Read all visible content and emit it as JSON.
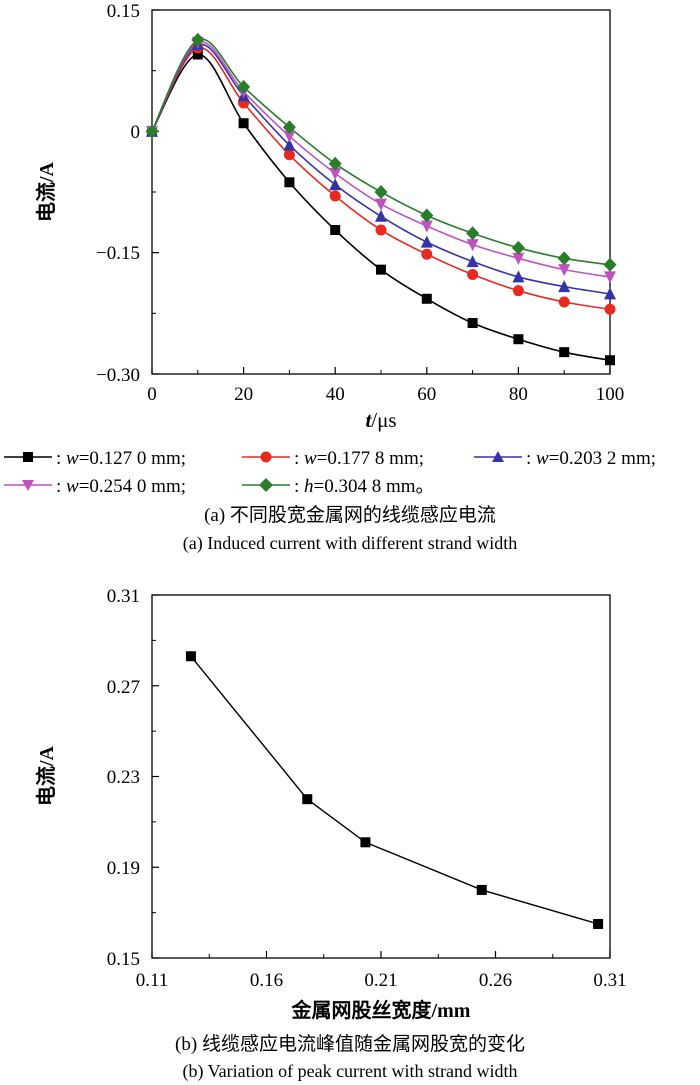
{
  "chart_data": [
    {
      "type": "line",
      "caption_cn": "(a) 不同股宽金属网的线缆感应电流",
      "caption_en": "(a) Induced current with different strand width",
      "xlabel_var": "t",
      "xlabel_unit": "/μs",
      "ylabel": "电流/A",
      "xlim": [
        0,
        100
      ],
      "ylim": [
        -0.3,
        0.15
      ],
      "xticks": [
        "0",
        "20",
        "40",
        "60",
        "80",
        "100"
      ],
      "yticks": [
        "0.15",
        "0",
        "−0.15",
        "−0.30"
      ],
      "x": [
        0,
        10,
        20,
        30,
        40,
        50,
        60,
        70,
        80,
        90,
        100
      ],
      "legend_placement": "bottom",
      "series": [
        {
          "var": "w",
          "value": "=0.127 0 mm;",
          "color": "#000000",
          "marker": "square",
          "values": [
            0,
            0.095,
            0.01,
            -0.063,
            -0.122,
            -0.171,
            -0.207,
            -0.237,
            -0.257,
            -0.273,
            -0.283
          ]
        },
        {
          "var": "w",
          "value": "=0.177 8 mm;",
          "color": "#e8291f",
          "marker": "circle",
          "values": [
            0,
            0.103,
            0.035,
            -0.029,
            -0.08,
            -0.122,
            -0.152,
            -0.177,
            -0.197,
            -0.211,
            -0.22
          ]
        },
        {
          "var": "w",
          "value": "=0.203 2 mm;",
          "color": "#3434a8",
          "marker": "triangle-up",
          "values": [
            0,
            0.107,
            0.044,
            -0.017,
            -0.066,
            -0.105,
            -0.137,
            -0.161,
            -0.18,
            -0.192,
            -0.201
          ]
        },
        {
          "var": "w",
          "value": "=0.254 0 mm;",
          "color": "#c052c0",
          "marker": "triangle-down",
          "values": [
            0,
            0.11,
            0.049,
            -0.006,
            -0.052,
            -0.09,
            -0.117,
            -0.14,
            -0.157,
            -0.171,
            -0.18
          ]
        },
        {
          "var": "h",
          "value": "=0.304 8 mm。",
          "color": "#2a7d2a",
          "marker": "diamond",
          "values": [
            0,
            0.113,
            0.055,
            0.005,
            -0.04,
            -0.075,
            -0.104,
            -0.126,
            -0.144,
            -0.157,
            -0.165
          ]
        }
      ]
    },
    {
      "type": "line",
      "caption_cn": "(b) 线缆感应电流峰值随金属网股宽的变化",
      "caption_en": "(b) Variation of peak current with strand width",
      "xlabel": "金属网股丝宽度/mm",
      "ylabel": "电流/A",
      "xlim": [
        0.11,
        0.31
      ],
      "ylim": [
        0.15,
        0.31
      ],
      "xticks": [
        "0.11",
        "0.16",
        "0.21",
        "0.26",
        "0.31"
      ],
      "yticks": [
        "0.31",
        "0.27",
        "0.23",
        "0.19",
        "0.15"
      ],
      "x": [
        0.127,
        0.1778,
        0.2032,
        0.254,
        0.3048
      ],
      "series": [
        {
          "color": "#000000",
          "marker": "square",
          "values": [
            0.283,
            0.22,
            0.201,
            0.18,
            0.165
          ]
        }
      ]
    }
  ]
}
